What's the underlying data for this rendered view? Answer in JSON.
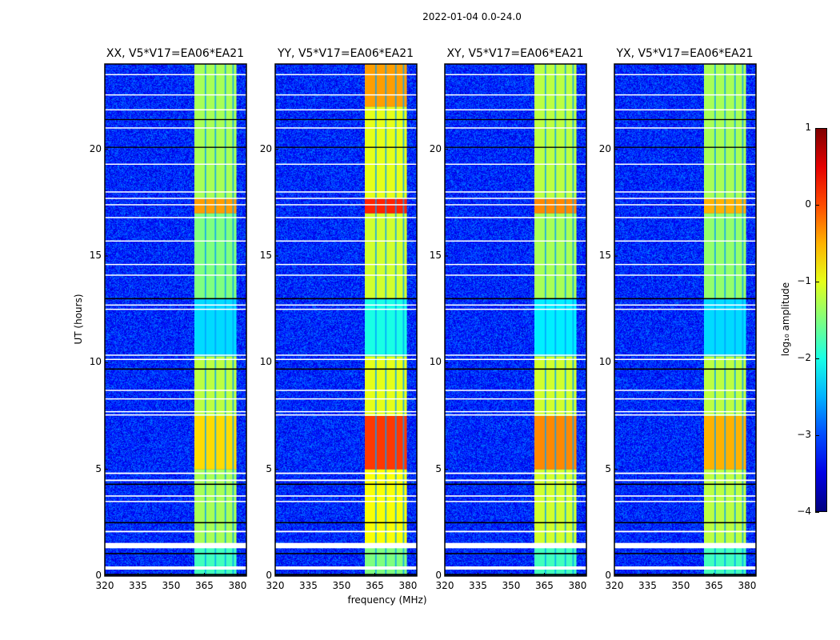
{
  "chart_data": {
    "type": "heatmap",
    "title": "2022-01-04 0.0-24.0",
    "xlabel": "frequency (MHz)",
    "ylabel": "UT (hours)",
    "xlim": [
      320,
      384
    ],
    "ylim": [
      0,
      24
    ],
    "xticks": [
      320,
      335,
      350,
      365,
      380
    ],
    "yticks": [
      0,
      5,
      10,
      15,
      20
    ],
    "colormap": "jet",
    "background_level": -3.2,
    "rfi_band": {
      "freq_range": [
        360.5,
        379.5
      ],
      "dividers": [
        365.5,
        370,
        374.5,
        378
      ]
    },
    "flagged_hours": [
      [
        0.3,
        0.45
      ],
      [
        1.3,
        1.55
      ],
      [
        2.05,
        2.12
      ],
      [
        3.47,
        3.52
      ],
      [
        3.72,
        3.78
      ],
      [
        4.45,
        4.52
      ],
      [
        4.78,
        4.85
      ],
      [
        7.52,
        7.58
      ],
      [
        7.68,
        7.73
      ],
      [
        8.28,
        8.33
      ],
      [
        8.68,
        8.73
      ],
      [
        10.13,
        10.18
      ],
      [
        10.33,
        10.38
      ],
      [
        12.48,
        12.53
      ],
      [
        12.68,
        12.73
      ],
      [
        14.08,
        14.13
      ],
      [
        14.58,
        14.63
      ],
      [
        15.68,
        15.73
      ],
      [
        16.78,
        16.83
      ],
      [
        17.38,
        17.43
      ],
      [
        17.68,
        17.73
      ],
      [
        17.98,
        18.03
      ],
      [
        19.28,
        19.33
      ],
      [
        20.98,
        21.03
      ],
      [
        21.83,
        21.88
      ],
      [
        22.53,
        22.58
      ],
      [
        23.48,
        23.53
      ]
    ],
    "zero_hours": [
      [
        0.03,
        0.1
      ],
      [
        1.02,
        1.08
      ],
      [
        2.47,
        2.53
      ],
      [
        4.27,
        4.33
      ],
      [
        9.67,
        9.73
      ],
      [
        12.97,
        13.03
      ],
      [
        20.07,
        20.12
      ],
      [
        21.37,
        21.42
      ]
    ],
    "panels": [
      {
        "title": "XX, V5*V17=EA06*EA21",
        "band_levels": [
          [
            0,
            1.5,
            -1.8
          ],
          [
            1.5,
            5,
            -1.3
          ],
          [
            5,
            7.5,
            -0.7
          ],
          [
            7.5,
            10.3,
            -1.2
          ],
          [
            10.3,
            13,
            -2.3
          ],
          [
            13,
            17,
            -1.5
          ],
          [
            17,
            17.7,
            -0.4
          ],
          [
            17.7,
            24,
            -1.3
          ]
        ]
      },
      {
        "title": "YY, V5*V17=EA06*EA21",
        "band_levels": [
          [
            0,
            1.5,
            -1.5
          ],
          [
            1.5,
            5,
            -0.9
          ],
          [
            5,
            7.5,
            0.1
          ],
          [
            7.5,
            10.3,
            -1.0
          ],
          [
            10.3,
            13,
            -2.0
          ],
          [
            13,
            17,
            -1.1
          ],
          [
            17,
            17.7,
            0.2
          ],
          [
            17.7,
            22,
            -1.0
          ],
          [
            22,
            24,
            -0.4
          ]
        ]
      },
      {
        "title": "XY, V5*V17=EA06*EA21",
        "band_levels": [
          [
            0,
            1.5,
            -1.8
          ],
          [
            1.5,
            5,
            -1.1
          ],
          [
            5,
            7.5,
            -0.3
          ],
          [
            7.5,
            10.3,
            -1.1
          ],
          [
            10.3,
            13,
            -2.2
          ],
          [
            13,
            17,
            -1.3
          ],
          [
            17,
            17.7,
            -0.3
          ],
          [
            17.7,
            24,
            -1.2
          ]
        ]
      },
      {
        "title": "YX, V5*V17=EA06*EA21",
        "band_levels": [
          [
            0,
            1.5,
            -1.8
          ],
          [
            1.5,
            5,
            -1.2
          ],
          [
            5,
            7.5,
            -0.5
          ],
          [
            7.5,
            10.3,
            -1.2
          ],
          [
            10.3,
            13,
            -2.3
          ],
          [
            13,
            17,
            -1.4
          ],
          [
            17,
            17.7,
            -0.5
          ],
          [
            17.7,
            24,
            -1.3
          ]
        ]
      }
    ],
    "colorbar": {
      "label": "log₁₀ amplitude",
      "range": [
        -4,
        1
      ],
      "ticks": [
        -4,
        -3,
        -2,
        -1,
        0,
        1
      ],
      "tick_labels": [
        "−4",
        "−3",
        "−2",
        "−1",
        "0",
        "1"
      ]
    }
  }
}
